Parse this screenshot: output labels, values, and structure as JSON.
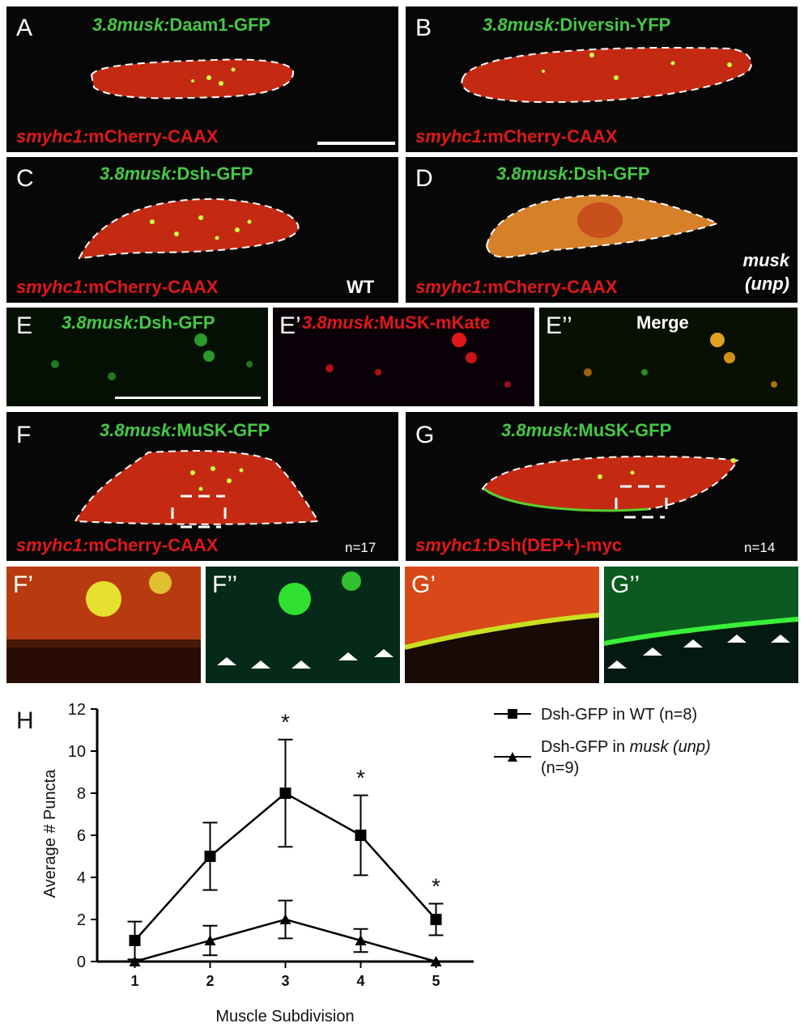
{
  "colors": {
    "green_text": "#45c845",
    "red_text": "#e01818",
    "membrane": "#d83010",
    "puncta": "#c8ff40"
  },
  "panels": {
    "A": {
      "label": "A",
      "green_title_italic": "3.8musk:",
      "green_title_rest": "Daam1-GFP",
      "red_title_italic": "smyhc1:",
      "red_title_rest": "mCherry-CAAX"
    },
    "B": {
      "label": "B",
      "green_title_italic": "3.8musk:",
      "green_title_rest": "Diversin-YFP",
      "red_title_italic": "smyhc1:",
      "red_title_rest": "mCherry-CAAX"
    },
    "C": {
      "label": "C",
      "green_title_italic": "3.8musk:",
      "green_title_rest": "Dsh-GFP",
      "red_title_italic": "smyhc1:",
      "red_title_rest": "mCherry-CAAX",
      "note": "WT"
    },
    "D": {
      "label": "D",
      "green_title_italic": "3.8musk:",
      "green_title_rest": "Dsh-GFP",
      "red_title_italic": "smyhc1:",
      "red_title_rest": "mCherry-CAAX",
      "note_line1": "musk",
      "note_line2": "(unp)"
    },
    "E": {
      "label": "E",
      "green_title_italic": "3.8musk:",
      "green_title_rest": "Dsh-GFP"
    },
    "E1": {
      "label": "E’",
      "red_title_italic": "3.8musk:",
      "red_title_rest": "MuSK-mKate"
    },
    "E2": {
      "label": "E’’",
      "title": "Merge"
    },
    "F": {
      "label": "F",
      "green_title_italic": "3.8musk:",
      "green_title_rest": "MuSK-GFP",
      "red_title_italic": "smyhc1:",
      "red_title_rest": "mCherry-CAAX",
      "n": "n=17"
    },
    "G": {
      "label": "G",
      "green_title_italic": "3.8musk:",
      "green_title_rest": "MuSK-GFP",
      "red_title_italic": "smyhc1:",
      "red_title_rest": "Dsh(DEP+)-myc",
      "n": "n=14"
    },
    "F1": {
      "label": "F’"
    },
    "F2": {
      "label": "F’’"
    },
    "G1": {
      "label": "G’"
    },
    "G2": {
      "label": "G’’"
    }
  },
  "chart_data": {
    "type": "line",
    "panel_label": "H",
    "xlabel": "Muscle Subdivision",
    "ylabel": "Average # Puncta",
    "x": [
      1,
      2,
      3,
      4,
      5
    ],
    "ylim": [
      0,
      12
    ],
    "yticks": [
      "0",
      "2",
      "4",
      "6",
      "8",
      "10",
      "12"
    ],
    "xticks": [
      "1",
      "2",
      "3",
      "4",
      "5"
    ],
    "series": [
      {
        "name": "Dsh-GFP in WT (n=8)",
        "marker": "square",
        "values": [
          1,
          5,
          8,
          6,
          2
        ],
        "errors": [
          0.9,
          1.6,
          2.55,
          1.9,
          0.75
        ]
      },
      {
        "name_prefix": "Dsh-GFP in ",
        "name_italic": "musk (unp)",
        "name_suffix": "(n=9)",
        "marker": "triangle",
        "values": [
          0,
          1,
          2,
          1,
          0
        ],
        "errors": [
          0,
          0.7,
          0.9,
          0.55,
          0
        ]
      }
    ],
    "significance": [
      {
        "x": 3,
        "label": "*"
      },
      {
        "x": 4,
        "label": "*"
      },
      {
        "x": 5,
        "label": "*"
      }
    ]
  }
}
